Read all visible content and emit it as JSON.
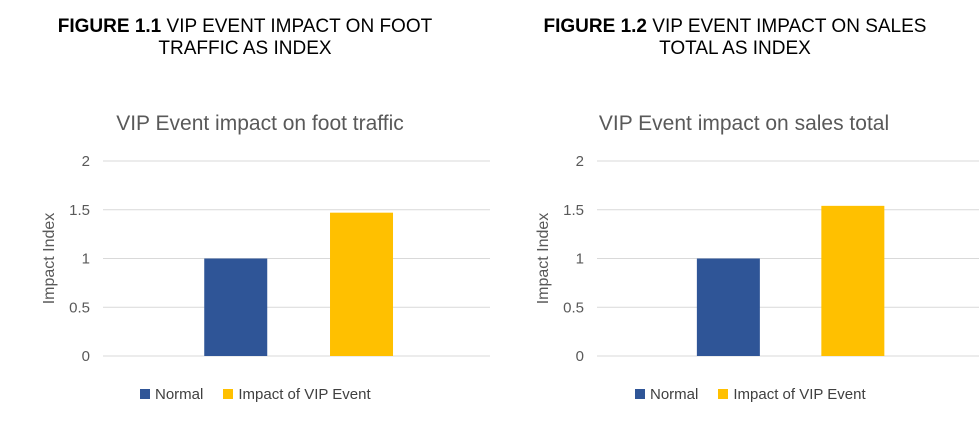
{
  "colors": {
    "normal": "#2F5597",
    "vip": "#FFC000",
    "grid": "#D9D9D9",
    "axis_text": "#595959"
  },
  "figures": [
    {
      "label": "FIGURE 1.1",
      "caption_line1": "VIP EVENT IMPACT ON FOOT",
      "caption_line2": "TRAFFIC AS INDEX"
    },
    {
      "label": "FIGURE 1.2",
      "caption_line1": "VIP EVENT IMPACT ON SALES",
      "caption_line2": "TOTAL AS INDEX"
    }
  ],
  "chart_data": [
    {
      "type": "bar",
      "title": "VIP Event impact on foot traffic",
      "ylabel": "Impact Index",
      "xlabel": "",
      "ylim": [
        0,
        2
      ],
      "yticks": [
        "0",
        "0.5",
        "1",
        "1.5",
        "2"
      ],
      "grid": true,
      "legend_position": "bottom",
      "series": [
        {
          "name": "Normal",
          "value": 1.0,
          "color": "#2F5597"
        },
        {
          "name": "Impact of VIP Event",
          "value": 1.47,
          "color": "#FFC000"
        }
      ]
    },
    {
      "type": "bar",
      "title": "VIP Event impact on sales total",
      "ylabel": "Impact Index",
      "xlabel": "",
      "ylim": [
        0,
        2
      ],
      "yticks": [
        "0",
        "0.5",
        "1",
        "1.5",
        "2"
      ],
      "grid": true,
      "legend_position": "bottom",
      "series": [
        {
          "name": "Normal",
          "value": 1.0,
          "color": "#2F5597"
        },
        {
          "name": "Impact of VIP Event",
          "value": 1.54,
          "color": "#FFC000"
        }
      ]
    }
  ]
}
